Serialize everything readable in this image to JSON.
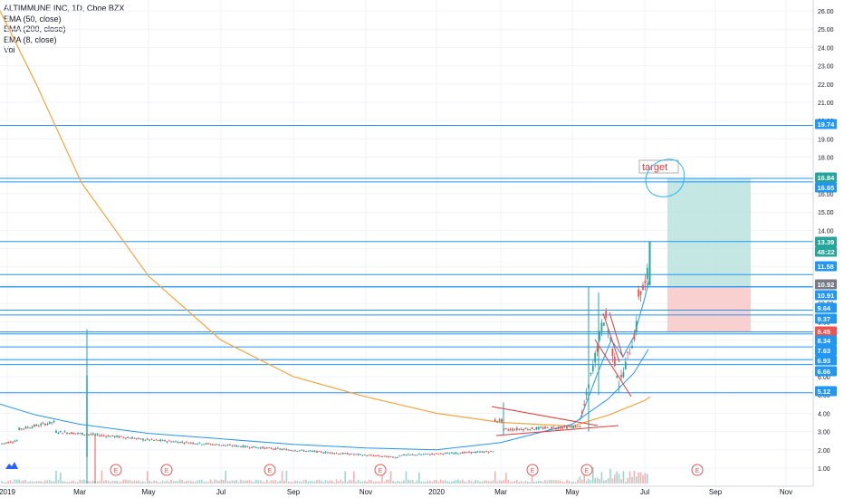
{
  "legend": {
    "title": "ALTIMMUNE INC, 1D, Cboe BZX",
    "indicators": [
      "EMA (50, close)",
      "EMA (200, close)",
      "EMA (8, close)",
      "Vol"
    ]
  },
  "annotation_text": "target",
  "earnings_marker": "E",
  "colors": {
    "up": "#26a69a",
    "down": "#ef5350",
    "hline": "#2196f3",
    "ema200": "#f7a43a",
    "ema50": "#2196f3",
    "ema8": "#2196f3",
    "trend": "#e53935",
    "profit": "#b2dfdb",
    "loss": "#f8c8c8",
    "price_tag": "#26a69a",
    "neutral_tag": "#787b86",
    "stop_tag": "#ef5350"
  },
  "chart_data": {
    "type": "candlestick",
    "title": "ALTIMMUNE INC, 1D, Cboe BZX",
    "y_ticks": [
      "26.00",
      "25.00",
      "24.00",
      "23.00",
      "22.00",
      "21.00",
      "20.00",
      "19.00",
      "18.00",
      "17.00",
      "16.00",
      "15.00",
      "14.00",
      "13.00",
      "12.00",
      "11.00",
      "10.00",
      "9.00",
      "8.00",
      "7.00",
      "6.00",
      "5.00",
      "4.00",
      "3.00",
      "2.00",
      "1.00"
    ],
    "ylim": [
      0.4,
      26.7
    ],
    "x_ticks": [
      "2019",
      "Mar",
      "May",
      "Jul",
      "Sep",
      "Nov",
      "2020",
      "Mar",
      "May",
      "Jul",
      "Sep",
      "Nov"
    ],
    "horizontal_levels": [
      19.74,
      16.84,
      16.65,
      13.39,
      11.58,
      10.92,
      10.91,
      9.64,
      9.37,
      8.45,
      8.34,
      7.63,
      6.93,
      6.66,
      5.12
    ],
    "price_labels": [
      {
        "value": "19.74",
        "kind": "level"
      },
      {
        "value": "16.84",
        "kind": "target"
      },
      {
        "value": "16.65",
        "kind": "level"
      },
      {
        "value": "13.39",
        "kind": "last"
      },
      {
        "value": "48:22",
        "kind": "countdown"
      },
      {
        "value": "11.58",
        "kind": "level"
      },
      {
        "value": "10.92",
        "kind": "entry"
      },
      {
        "value": "10.91",
        "kind": "level"
      },
      {
        "value": "9.64",
        "kind": "level"
      },
      {
        "value": "9.37",
        "kind": "level"
      },
      {
        "value": "8.45",
        "kind": "stop"
      },
      {
        "value": "8.34",
        "kind": "level"
      },
      {
        "value": "7.63",
        "kind": "level"
      },
      {
        "value": "6.93",
        "kind": "level"
      },
      {
        "value": "6.66",
        "kind": "level"
      },
      {
        "value": "5.12",
        "kind": "level"
      }
    ],
    "position": {
      "entry": 10.92,
      "target": 16.84,
      "stop": 8.45
    },
    "series": [
      {
        "name": "EMA (200, close)",
        "points": [
          [
            "2019-01",
            23.8
          ],
          [
            "2019-03",
            16.6
          ],
          [
            "2019-05",
            11.5
          ],
          [
            "2019-07",
            8.0
          ],
          [
            "2019-09",
            6.0
          ],
          [
            "2019-11",
            4.9
          ],
          [
            "2020-01",
            4.0
          ],
          [
            "2020-03",
            3.5
          ],
          [
            "2020-05",
            3.3
          ],
          [
            "2020-06",
            3.9
          ],
          [
            "2020-07",
            4.7
          ]
        ]
      },
      {
        "name": "EMA (50, close)",
        "points": [
          [
            "2019-01",
            4.4
          ],
          [
            "2019-03",
            3.4
          ],
          [
            "2019-05",
            2.9
          ],
          [
            "2019-07",
            2.6
          ],
          [
            "2019-09",
            2.3
          ],
          [
            "2019-11",
            2.1
          ],
          [
            "2020-01",
            2.1
          ],
          [
            "2020-03",
            2.5
          ],
          [
            "2020-05",
            3.5
          ],
          [
            "2020-06",
            5.0
          ],
          [
            "2020-07",
            7.0
          ]
        ]
      },
      {
        "name": "EMA (8, close)",
        "points": [
          [
            "2020-05",
            5.0
          ],
          [
            "2020-06",
            7.5
          ],
          [
            "2020-07",
            11.0
          ]
        ]
      }
    ],
    "earnings_dates": [
      "2019-03",
      "2019-05",
      "2019-08",
      "2019-11",
      "2020-03",
      "2020-05",
      "2020-09"
    ],
    "max_volume_date": "2019-03"
  }
}
